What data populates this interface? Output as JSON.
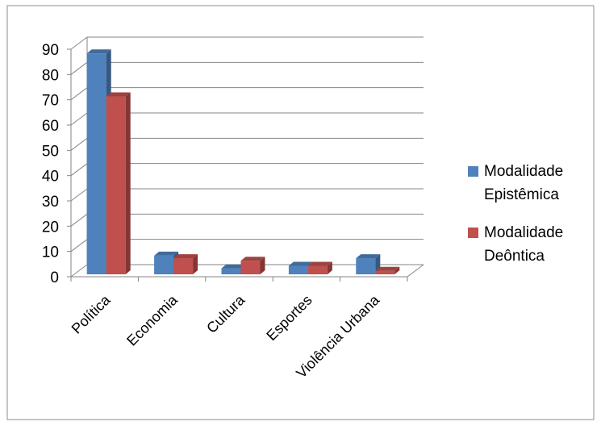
{
  "chart_data": {
    "type": "bar",
    "categories": [
      "Política",
      "Economia",
      "Cultura",
      "Esportes",
      "Violência Urbana"
    ],
    "series": [
      {
        "name": "Modalidade Epistêmica",
        "values": [
          88,
          8,
          3,
          4,
          7
        ],
        "color": "#4f81bd"
      },
      {
        "name": "Modalidade Deôntica",
        "values": [
          71,
          7,
          6,
          4,
          2
        ],
        "color": "#c0504d"
      }
    ],
    "ylim": [
      0,
      90
    ],
    "yticks": [
      0,
      10,
      20,
      30,
      40,
      50,
      60,
      70,
      80,
      90
    ],
    "grid": true,
    "legend_position": "right",
    "three_d": true
  }
}
